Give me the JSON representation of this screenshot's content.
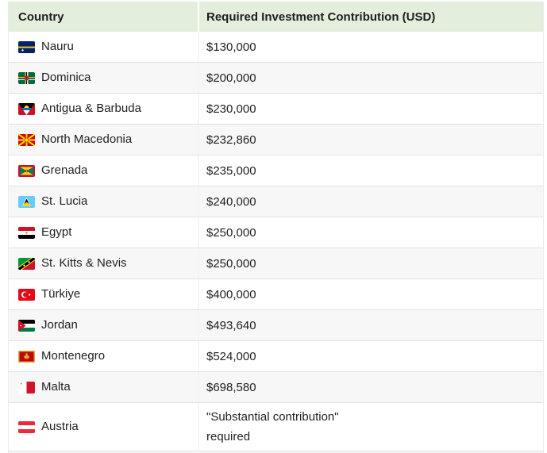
{
  "table": {
    "columns": [
      {
        "label": "Country"
      },
      {
        "label": "Required Investment Contribution (USD)"
      }
    ],
    "rows": [
      {
        "flag": "nauru",
        "country": "Nauru",
        "value_lines": [
          "$130,000"
        ]
      },
      {
        "flag": "dominica",
        "country": "Dominica",
        "value_lines": [
          "$200,000"
        ]
      },
      {
        "flag": "antigua-barbuda",
        "country": "Antigua & Barbuda",
        "value_lines": [
          "$230,000"
        ]
      },
      {
        "flag": "north-macedonia",
        "country": "North Macedonia",
        "value_lines": [
          "$232,860"
        ]
      },
      {
        "flag": "grenada",
        "country": "Grenada",
        "value_lines": [
          "$235,000"
        ]
      },
      {
        "flag": "st-lucia",
        "country": "St. Lucia",
        "value_lines": [
          "$240,000"
        ]
      },
      {
        "flag": "egypt",
        "country": "Egypt",
        "value_lines": [
          "$250,000"
        ]
      },
      {
        "flag": "st-kitts-nevis",
        "country": "St. Kitts & Nevis",
        "value_lines": [
          "$250,000"
        ]
      },
      {
        "flag": "turkiye",
        "country": "Türkiye",
        "value_lines": [
          "$400,000"
        ]
      },
      {
        "flag": "jordan",
        "country": "Jordan",
        "value_lines": [
          "$493,640"
        ]
      },
      {
        "flag": "montenegro",
        "country": "Montenegro",
        "value_lines": [
          "$524,000"
        ]
      },
      {
        "flag": "malta",
        "country": "Malta",
        "value_lines": [
          "$698,580"
        ]
      },
      {
        "flag": "austria",
        "country": "Austria",
        "value_lines": [
          "\"Substantial contribution\"",
          "required"
        ]
      }
    ],
    "colors": {
      "header_bg": "#e3eedd",
      "row_bg": "#ffffff",
      "row_alt_bg": "#f7f7f7",
      "border": "#e2e2e2",
      "text": "#202122"
    }
  }
}
